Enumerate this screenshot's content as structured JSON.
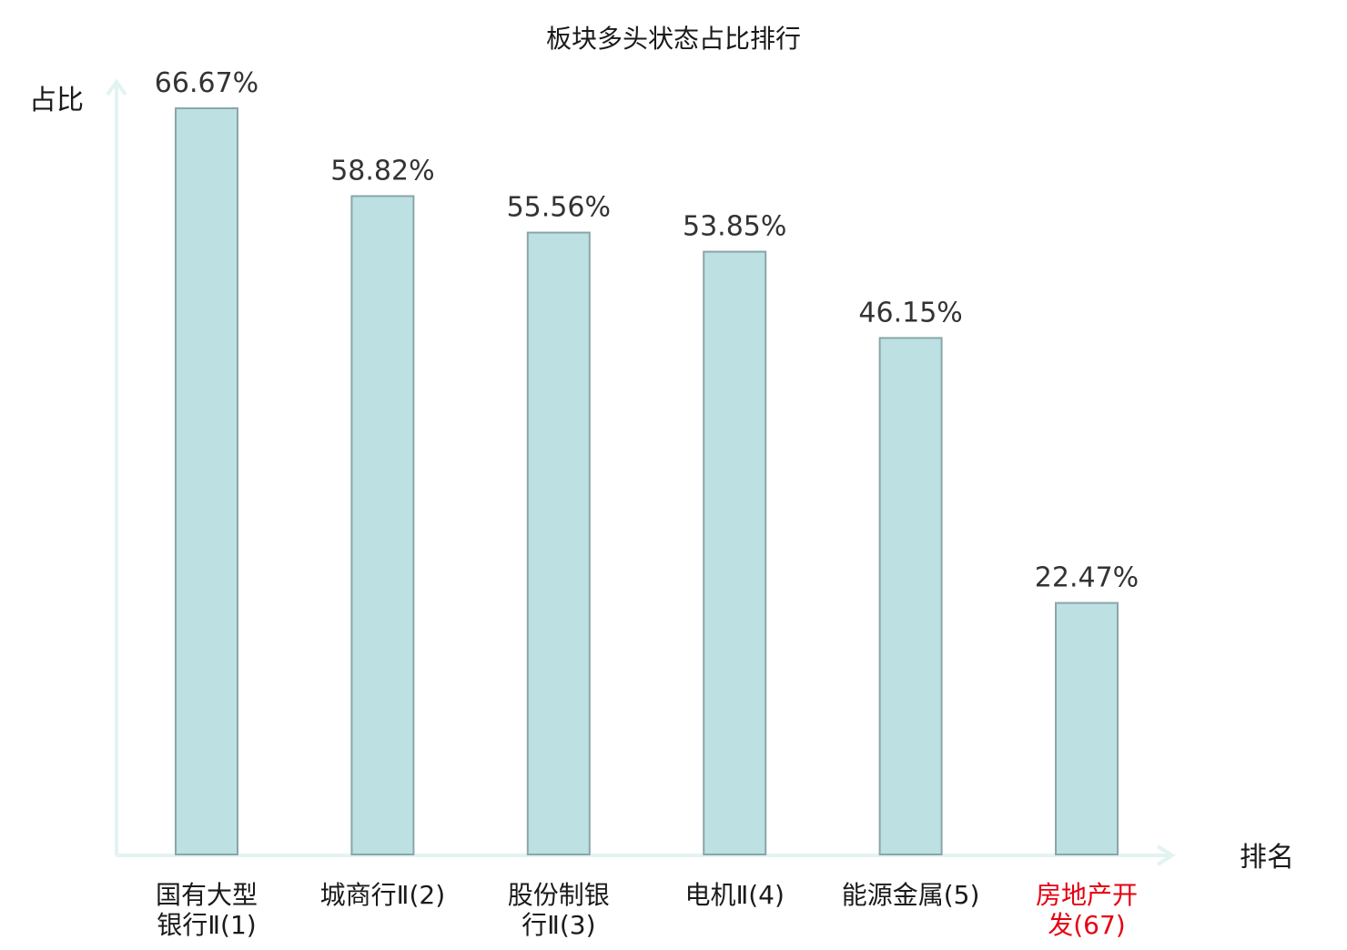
{
  "chart_data": {
    "type": "bar",
    "title": "板块多头状态占比排行",
    "ylabel": "占比",
    "xlabel": "排名",
    "ylim": [
      0,
      70
    ],
    "grid": false,
    "categories": [
      {
        "lines": [
          "国有大型",
          "银行Ⅱ(1)"
        ],
        "highlight": false
      },
      {
        "lines": [
          "城商行Ⅱ(2)"
        ],
        "highlight": false
      },
      {
        "lines": [
          "股份制银",
          "行Ⅱ(3)"
        ],
        "highlight": false
      },
      {
        "lines": [
          "电机Ⅱ(4)"
        ],
        "highlight": false
      },
      {
        "lines": [
          "能源金属(5)"
        ],
        "highlight": false
      },
      {
        "lines": [
          "房地产开",
          "发(67)"
        ],
        "highlight": true
      }
    ],
    "values": [
      66.67,
      58.82,
      55.56,
      53.85,
      46.15,
      22.47
    ],
    "value_labels": [
      "66.67%",
      "58.82%",
      "55.56%",
      "53.85%",
      "46.15%",
      "22.47%"
    ],
    "colors": {
      "bar_fill": "#bde0e3",
      "bar_stroke": "#8aa6a8",
      "axis": "#e3f3f1",
      "text": "#1a1a1a",
      "value_text": "#333333",
      "highlight_text": "#e60012"
    }
  }
}
